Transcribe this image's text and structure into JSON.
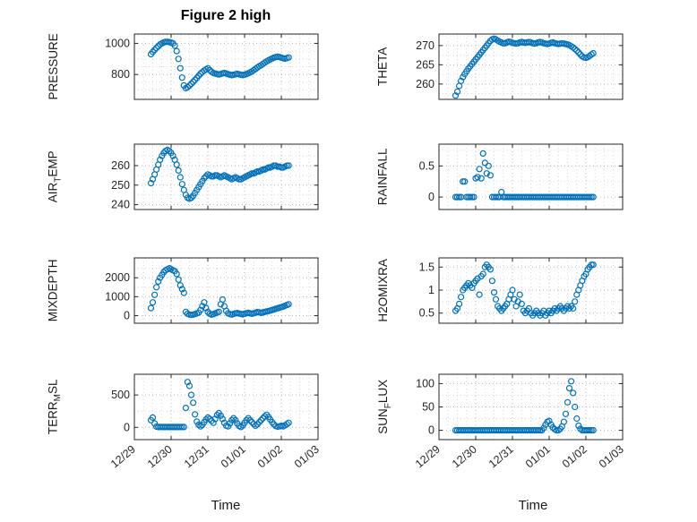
{
  "figure": {
    "title": "Figure 2 high",
    "xlabel": "Time"
  },
  "marker": {
    "shape": "circle",
    "color": "#0072BD",
    "fill": "none"
  },
  "colors": {
    "axes": "#262626",
    "grid_major": "#b8b8b8",
    "grid_minor": "#d8d8d8",
    "background": "#ffffff"
  },
  "x_axis": {
    "lim": [
      0,
      5
    ],
    "ticks": [
      0,
      1,
      2,
      3,
      4,
      5
    ],
    "labels": [
      "12/29",
      "12/30",
      "12/31",
      "01/01",
      "01/02",
      "01/03"
    ],
    "minor_step": 0.25
  },
  "time_days": [
    0.45,
    0.5,
    0.55,
    0.6,
    0.65,
    0.7,
    0.75,
    0.8,
    0.85,
    0.9,
    0.95,
    1,
    1.05,
    1.1,
    1.15,
    1.2,
    1.25,
    1.3,
    1.35,
    1.4,
    1.45,
    1.5,
    1.55,
    1.6,
    1.65,
    1.7,
    1.75,
    1.8,
    1.85,
    1.9,
    1.95,
    2,
    2.05,
    2.1,
    2.15,
    2.2,
    2.25,
    2.3,
    2.35,
    2.4,
    2.45,
    2.5,
    2.55,
    2.6,
    2.65,
    2.7,
    2.75,
    2.8,
    2.85,
    2.9,
    2.95,
    3,
    3.05,
    3.1,
    3.15,
    3.2,
    3.25,
    3.3,
    3.35,
    3.4,
    3.45,
    3.5,
    3.55,
    3.6,
    3.65,
    3.7,
    3.75,
    3.8,
    3.85,
    3.9,
    3.95,
    4,
    4.05,
    4.1,
    4.15,
    4.2
  ],
  "chart_data": [
    {
      "type": "scatter",
      "name": "PRESSURE",
      "ylabel": {
        "pre": "PRESSURE",
        "sub": "",
        "post": ""
      },
      "ylim": [
        640,
        1060
      ],
      "yticks": [
        800,
        1000
      ],
      "ytick_labels": [
        "800",
        "1000"
      ],
      "y_minor": 50,
      "y": [
        930,
        945,
        958,
        970,
        982,
        993,
        1000,
        1006,
        1010,
        1010,
        1008,
        1005,
        1000,
        985,
        950,
        900,
        840,
        780,
        730,
        712,
        718,
        728,
        740,
        753,
        765,
        778,
        792,
        805,
        815,
        825,
        833,
        840,
        828,
        818,
        810,
        806,
        803,
        800,
        803,
        807,
        810,
        806,
        802,
        799,
        796,
        798,
        801,
        804,
        801,
        798,
        796,
        799,
        803,
        808,
        814,
        820,
        828,
        836,
        845,
        853,
        860,
        868,
        876,
        884,
        891,
        897,
        903,
        908,
        912,
        914,
        912,
        908,
        904,
        902,
        905,
        909
      ]
    },
    {
      "type": "scatter",
      "name": "AIR_TEMP",
      "ylabel": {
        "pre": "AIR",
        "sub": "T",
        "post": "EMP"
      },
      "ylim": [
        237.5,
        271
      ],
      "yticks": [
        240,
        250,
        260
      ],
      "ytick_labels": [
        "240",
        "250",
        "260"
      ],
      "y_minor": 5,
      "y": [
        251,
        253,
        255.5,
        258,
        260.5,
        263,
        265,
        266.5,
        267.5,
        268,
        267.5,
        266.5,
        265,
        263,
        260.5,
        257.5,
        254,
        250.5,
        247.5,
        245,
        243.5,
        243,
        243.5,
        244.5,
        246,
        247.5,
        249,
        250.5,
        252,
        253.5,
        254.5,
        255.5,
        255,
        254.5,
        254.5,
        255,
        255,
        254.5,
        254,
        254.5,
        255,
        254.5,
        254,
        253.5,
        253,
        253.5,
        254,
        253.5,
        253,
        253,
        253.5,
        254,
        254.5,
        255,
        255.5,
        256,
        256,
        256.5,
        257,
        257,
        257.5,
        258,
        258,
        258.5,
        259,
        259,
        259.5,
        260,
        260,
        259.5,
        259.5,
        259,
        259,
        259.5,
        260,
        260
      ]
    },
    {
      "type": "scatter",
      "name": "MIXDEPTH",
      "ylabel": {
        "pre": "MIXDEPTH",
        "sub": "",
        "post": ""
      },
      "ylim": [
        -400,
        3050
      ],
      "yticks": [
        0,
        1000,
        2000
      ],
      "ytick_labels": [
        "0",
        "1000",
        "2000"
      ],
      "y_minor": 500,
      "y": [
        400,
        700,
        1100,
        1500,
        1800,
        2000,
        2150,
        2300,
        2400,
        2450,
        2500,
        2450,
        2400,
        2350,
        2200,
        1900,
        1600,
        1400,
        1200,
        200,
        100,
        60,
        40,
        60,
        80,
        120,
        160,
        300,
        500,
        700,
        400,
        200,
        100,
        60,
        80,
        120,
        160,
        200,
        600,
        850,
        500,
        250,
        120,
        80,
        60,
        90,
        120,
        140,
        110,
        90,
        70,
        100,
        130,
        150,
        120,
        100,
        130,
        160,
        190,
        170,
        150,
        170,
        200,
        220,
        240,
        270,
        300,
        330,
        360,
        390,
        420,
        450,
        480,
        520,
        560,
        600
      ]
    },
    {
      "type": "scatter",
      "name": "TERR_MSL",
      "ylabel": {
        "pre": "TERR",
        "sub": "M",
        "post": "SL"
      },
      "ylim": [
        -190,
        820
      ],
      "yticks": [
        0,
        500
      ],
      "ytick_labels": [
        "0",
        "500"
      ],
      "y_minor": 250,
      "y": [
        110,
        150,
        60,
        10,
        5,
        5,
        5,
        5,
        5,
        5,
        5,
        5,
        5,
        5,
        5,
        5,
        5,
        5,
        5,
        300,
        700,
        640,
        500,
        380,
        200,
        90,
        40,
        15,
        35,
        80,
        120,
        150,
        130,
        100,
        70,
        130,
        190,
        220,
        180,
        130,
        70,
        25,
        15,
        60,
        110,
        140,
        110,
        60,
        20,
        5,
        30,
        70,
        110,
        140,
        110,
        80,
        50,
        25,
        45,
        80,
        110,
        140,
        170,
        195,
        160,
        120,
        80,
        45,
        20,
        10,
        15,
        25,
        15,
        30,
        50,
        70
      ]
    },
    {
      "type": "scatter",
      "name": "THETA",
      "ylabel": {
        "pre": "THETA",
        "sub": "",
        "post": ""
      },
      "ylim": [
        256,
        273
      ],
      "yticks": [
        260,
        265,
        270
      ],
      "ytick_labels": [
        "260",
        "265",
        "270"
      ],
      "y_minor": 2.5,
      "y": [
        257,
        258,
        259.5,
        260.8,
        261.8,
        262.6,
        263.3,
        264,
        264.6,
        265.2,
        265.8,
        266.4,
        267,
        267.6,
        268.2,
        268.8,
        269.4,
        270,
        270.6,
        271.2,
        271.6,
        271.8,
        271.6,
        271.3,
        271,
        270.8,
        270.6,
        270.6,
        270.8,
        271,
        270.9,
        270.7,
        270.6,
        270.5,
        270.6,
        270.8,
        270.9,
        270.8,
        270.7,
        270.8,
        270.9,
        270.8,
        270.6,
        270.5,
        270.6,
        270.8,
        270.9,
        270.8,
        270.6,
        270.5,
        270.4,
        270.5,
        270.7,
        270.8,
        270.6,
        270.5,
        270.4,
        270.5,
        270.6,
        270.5,
        270.4,
        270.3,
        270.1,
        269.8,
        269.5,
        269.1,
        268.7,
        268.2,
        267.7,
        267.2,
        266.9,
        266.8,
        267,
        267.3,
        267.7,
        268
      ]
    },
    {
      "type": "scatter",
      "name": "RAINFALL",
      "ylabel": {
        "pre": "RAINFALL",
        "sub": "",
        "post": ""
      },
      "ylim": [
        -0.2,
        0.85
      ],
      "yticks": [
        0,
        0.5
      ],
      "ytick_labels": [
        "0",
        "0.5"
      ],
      "y_minor": 0.25,
      "y": [
        0,
        0,
        0,
        0,
        0.25,
        0.25,
        0,
        0,
        0,
        0,
        0,
        0.3,
        0.32,
        0.45,
        0.3,
        0.7,
        0.55,
        0.38,
        0.5,
        0.35,
        0,
        0,
        0,
        0,
        0,
        0.08,
        0,
        0,
        0,
        0,
        0,
        0,
        0,
        0,
        0,
        0,
        0,
        0,
        0,
        0,
        0,
        0,
        0,
        0,
        0,
        0,
        0,
        0,
        0,
        0,
        0,
        0,
        0,
        0,
        0,
        0,
        0,
        0,
        0,
        0,
        0,
        0,
        0,
        0,
        0,
        0,
        0,
        0,
        0,
        0,
        0,
        0,
        0,
        0,
        0,
        0
      ]
    },
    {
      "type": "scatter",
      "name": "H2OMIXRA",
      "ylabel": {
        "pre": "H2OMIXRA",
        "sub": "",
        "post": ""
      },
      "ylim": [
        0.28,
        1.7
      ],
      "yticks": [
        0.5,
        1,
        1.5
      ],
      "ytick_labels": [
        "0.5",
        "1",
        "1.5"
      ],
      "y_minor": 0.25,
      "y": [
        0.55,
        0.6,
        0.7,
        0.85,
        1,
        1.05,
        1.1,
        1.15,
        1.1,
        1.05,
        1.15,
        1.2,
        1.25,
        0.9,
        1.3,
        1.35,
        1.5,
        1.55,
        1.5,
        1.45,
        1.2,
        0.95,
        0.8,
        0.65,
        0.6,
        0.55,
        0.6,
        0.65,
        0.7,
        0.8,
        0.9,
        1,
        0.8,
        0.65,
        0.75,
        0.9,
        0.7,
        0.55,
        0.5,
        0.55,
        0.6,
        0.5,
        0.45,
        0.5,
        0.55,
        0.5,
        0.45,
        0.5,
        0.55,
        0.45,
        0.5,
        0.55,
        0.5,
        0.55,
        0.6,
        0.55,
        0.6,
        0.65,
        0.6,
        0.55,
        0.6,
        0.65,
        0.6,
        0.65,
        0.6,
        0.75,
        0.9,
        1,
        1.1,
        1.2,
        1.3,
        1.35,
        1.45,
        1.5,
        1.55,
        1.55
      ]
    },
    {
      "type": "scatter",
      "name": "SUN_FLUX",
      "ylabel": {
        "pre": "SUN",
        "sub": "F",
        "post": "LUX"
      },
      "ylim": [
        -20,
        120
      ],
      "yticks": [
        0,
        50,
        100
      ],
      "ytick_labels": [
        "0",
        "50",
        "100"
      ],
      "y_minor": 25,
      "y": [
        0,
        0,
        0,
        0,
        0,
        0,
        0,
        0,
        0,
        0,
        0,
        0,
        0,
        0,
        0,
        0,
        0,
        0,
        0,
        0,
        0,
        0,
        0,
        0,
        0,
        0,
        0,
        0,
        0,
        0,
        0,
        0,
        0,
        0,
        0,
        0,
        0,
        0,
        0,
        0,
        0,
        0,
        0,
        0,
        0,
        0,
        0,
        0,
        5,
        12,
        18,
        20,
        12,
        6,
        2,
        0,
        0,
        3,
        8,
        18,
        35,
        60,
        90,
        105,
        80,
        50,
        25,
        10,
        3,
        0,
        0,
        0,
        0,
        0,
        0,
        0
      ]
    }
  ]
}
